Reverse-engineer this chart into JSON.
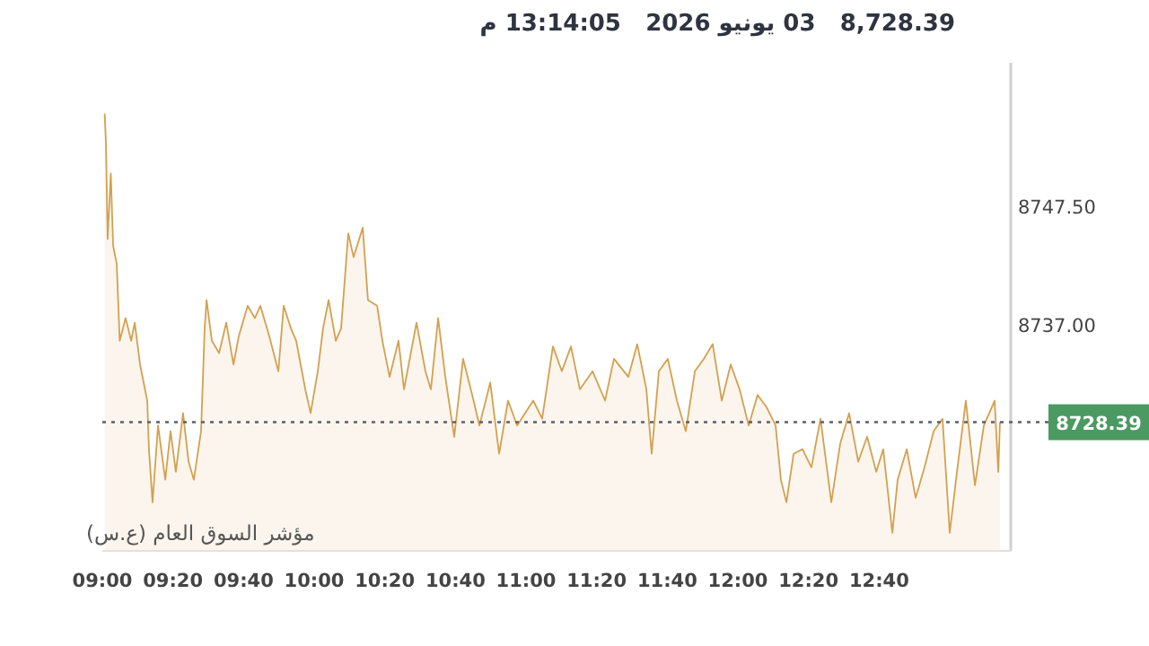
{
  "chart_data": {
    "type": "area",
    "title": "8,728.39   03 يونيو 2026   13:14:05 م",
    "annotations": [
      "مؤشر السوق العام (ع.س)"
    ],
    "x": [
      9.011,
      9.017,
      9.025,
      9.04,
      9.051,
      9.068,
      9.082,
      9.11,
      9.136,
      9.153,
      9.178,
      9.212,
      9.22,
      9.237,
      9.263,
      9.297,
      9.322,
      9.347,
      9.381,
      9.407,
      9.432,
      9.466,
      9.483,
      9.492,
      9.517,
      9.551,
      9.585,
      9.619,
      9.644,
      9.686,
      9.72,
      9.746,
      9.788,
      9.831,
      9.856,
      9.89,
      9.915,
      9.958,
      9.983,
      10.017,
      10.042,
      10.068,
      10.102,
      10.127,
      10.161,
      10.186,
      10.229,
      10.254,
      10.297,
      10.322,
      10.356,
      10.398,
      10.424,
      10.483,
      10.525,
      10.551,
      10.585,
      10.619,
      10.661,
      10.703,
      10.746,
      10.78,
      10.831,
      10.873,
      10.915,
      10.958,
      11.034,
      11.076,
      11.127,
      11.169,
      11.212,
      11.254,
      11.314,
      11.373,
      11.415,
      11.483,
      11.525,
      11.568,
      11.593,
      11.627,
      11.669,
      11.712,
      11.754,
      11.797,
      11.839,
      11.881,
      11.924,
      11.966,
      12.008,
      12.051,
      12.093,
      12.136,
      12.178,
      12.203,
      12.229,
      12.263,
      12.305,
      12.347,
      12.39,
      12.441,
      12.483,
      12.525,
      12.568,
      12.61,
      12.653,
      12.686,
      12.729,
      12.754,
      12.797,
      12.839,
      12.881,
      12.924,
      12.966,
      13.0,
      13.034,
      13.076,
      13.119,
      13.161,
      13.212,
      13.229,
      13.237
    ],
    "series": [
      {
        "color": "#d4a04f",
        "values": [
          8755.7,
          8753.1,
          8744.6,
          8750.4,
          8744.0,
          8742.4,
          8735.6,
          8737.6,
          8735.6,
          8737.2,
          8733.5,
          8730.3,
          8726.0,
          8721.3,
          8728.1,
          8723.3,
          8727.6,
          8724.0,
          8729.2,
          8724.9,
          8723.3,
          8727.6,
          8736.7,
          8739.2,
          8735.6,
          8734.5,
          8737.2,
          8733.5,
          8736.0,
          8738.7,
          8737.6,
          8738.7,
          8736.0,
          8732.9,
          8738.7,
          8736.7,
          8735.6,
          8731.3,
          8729.2,
          8732.9,
          8736.7,
          8739.2,
          8735.6,
          8736.7,
          8745.1,
          8743.0,
          8745.6,
          8739.2,
          8738.7,
          8735.6,
          8732.4,
          8735.6,
          8731.3,
          8737.2,
          8732.9,
          8731.3,
          8737.6,
          8732.4,
          8727.1,
          8734.0,
          8730.8,
          8728.1,
          8731.9,
          8725.6,
          8730.3,
          8728.1,
          8730.3,
          8728.7,
          8735.1,
          8732.9,
          8735.1,
          8731.3,
          8732.9,
          8730.3,
          8734.0,
          8732.4,
          8735.3,
          8731.3,
          8725.6,
          8732.9,
          8734.0,
          8730.3,
          8727.6,
          8732.9,
          8734.0,
          8735.3,
          8730.3,
          8733.5,
          8731.3,
          8728.1,
          8730.8,
          8729.7,
          8728.1,
          8723.3,
          8721.3,
          8725.6,
          8726.0,
          8724.4,
          8728.7,
          8721.3,
          8726.5,
          8729.2,
          8724.9,
          8727.1,
          8724.0,
          8726.0,
          8718.6,
          8723.3,
          8726.0,
          8721.7,
          8724.4,
          8727.6,
          8728.7,
          8718.6,
          8724.0,
          8730.3,
          8722.8,
          8728.1,
          8730.3,
          8724.0,
          8728.4
        ]
      }
    ],
    "xlim": [
      9.0,
      13.288
    ],
    "xticks": [
      {
        "value": 9.0,
        "label": "09:00"
      },
      {
        "value": 9.3333,
        "label": "09:20"
      },
      {
        "value": 9.6667,
        "label": "09:40"
      },
      {
        "value": 10.0,
        "label": "10:00"
      },
      {
        "value": 10.3333,
        "label": "10:20"
      },
      {
        "value": 10.6667,
        "label": "10:40"
      },
      {
        "value": 11.0,
        "label": "11:00"
      },
      {
        "value": 11.3333,
        "label": "11:20"
      },
      {
        "value": 11.6667,
        "label": "11:40"
      },
      {
        "value": 12.0,
        "label": "12:00"
      },
      {
        "value": 12.3333,
        "label": "12:20"
      },
      {
        "value": 12.6667,
        "label": "12:40"
      }
    ],
    "ylim": [
      8717.0,
      8760.2
    ],
    "yticks": [
      {
        "value": 8737.0,
        "label": "8737.00"
      },
      {
        "value": 8747.5,
        "label": "8747.50"
      }
    ],
    "ref_lines": [
      {
        "axis": "y",
        "value": 8728.39,
        "label": "8728.39",
        "line_style": "dotted"
      }
    ],
    "grid": false
  }
}
